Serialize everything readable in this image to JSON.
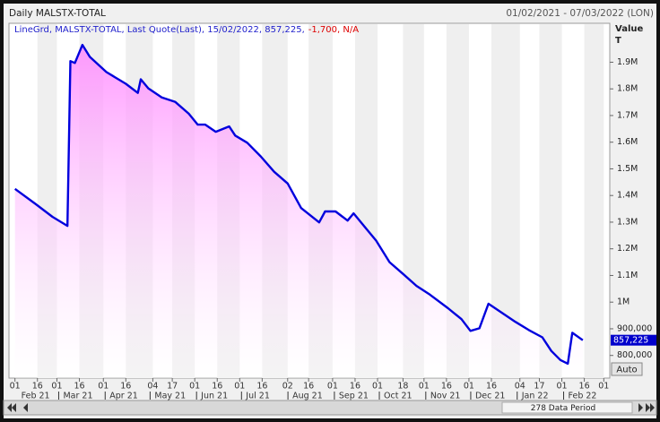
{
  "chart_data": {
    "type": "line",
    "title": "Daily MALSTX-TOTAL",
    "date_range": "01/02/2021 - 07/03/2022 (LON)",
    "legend": {
      "text": "LineGrd, MALSTX-TOTAL, Last Quote(Last), 15/02/2022, 857,225,",
      "change": "-1,700, N/A"
    },
    "y_axis_title": "Value",
    "y_axis_unit": "T",
    "last_label": "857,225",
    "auto_button": "Auto",
    "period_label": "278 Data Period",
    "x": [
      "2021-02-01",
      "2021-02-15",
      "2021-02-26",
      "2021-03-08",
      "2021-03-10",
      "2021-03-13",
      "2021-03-18",
      "2021-03-23",
      "2021-04-03",
      "2021-04-16",
      "2021-04-24",
      "2021-04-26",
      "2021-05-01",
      "2021-05-10",
      "2021-05-19",
      "2021-05-28",
      "2021-06-03",
      "2021-06-08",
      "2021-06-15",
      "2021-06-24",
      "2021-06-28",
      "2021-07-06",
      "2021-07-15",
      "2021-07-24",
      "2021-08-02",
      "2021-08-11",
      "2021-08-23",
      "2021-08-27",
      "2021-09-03",
      "2021-09-11",
      "2021-09-15",
      "2021-09-21",
      "2021-09-30",
      "2021-10-09",
      "2021-10-18",
      "2021-10-27",
      "2021-11-05",
      "2021-11-17",
      "2021-11-26",
      "2021-12-02",
      "2021-12-08",
      "2021-12-14",
      "2021-12-23",
      "2022-01-01",
      "2022-01-10",
      "2022-01-19",
      "2022-01-25",
      "2022-01-31",
      "2022-02-05",
      "2022-02-08",
      "2022-02-15"
    ],
    "series": [
      {
        "name": "MALSTX-TOTAL",
        "color": "#0000dd",
        "values": [
          1425000,
          1367000,
          1320000,
          1286000,
          1904000,
          1897000,
          1965000,
          1920000,
          1863000,
          1819000,
          1785000,
          1836000,
          1802000,
          1768000,
          1751000,
          1707000,
          1666000,
          1666000,
          1639000,
          1659000,
          1625000,
          1598000,
          1547000,
          1489000,
          1445000,
          1353000,
          1299000,
          1340000,
          1340000,
          1306000,
          1333000,
          1292000,
          1231000,
          1150000,
          1106000,
          1061000,
          1028000,
          977000,
          936000,
          892000,
          902000,
          994000,
          960000,
          926000,
          895000,
          868000,
          817000,
          783000,
          769000,
          885000,
          857225
        ]
      }
    ],
    "area_color": "#ff88ff",
    "xlim": [
      "2021-01-28",
      "2022-03-05"
    ],
    "xticks": [
      {
        "value": "2021-02-01",
        "label": "01"
      },
      {
        "value": "2021-02-16",
        "label": "16"
      },
      {
        "value": "2021-03-01",
        "label": "01"
      },
      {
        "value": "2021-03-16",
        "label": "16"
      },
      {
        "value": "2021-04-01",
        "label": "01"
      },
      {
        "value": "2021-04-16",
        "label": "16"
      },
      {
        "value": "2021-05-04",
        "label": "04"
      },
      {
        "value": "2021-05-17",
        "label": "17"
      },
      {
        "value": "2021-06-01",
        "label": "01"
      },
      {
        "value": "2021-06-16",
        "label": "16"
      },
      {
        "value": "2021-07-01",
        "label": "01"
      },
      {
        "value": "2021-07-16",
        "label": "16"
      },
      {
        "value": "2021-08-02",
        "label": "02"
      },
      {
        "value": "2021-08-16",
        "label": "16"
      },
      {
        "value": "2021-09-01",
        "label": "01"
      },
      {
        "value": "2021-09-16",
        "label": "16"
      },
      {
        "value": "2021-10-01",
        "label": "01"
      },
      {
        "value": "2021-10-18",
        "label": "18"
      },
      {
        "value": "2021-11-01",
        "label": "01"
      },
      {
        "value": "2021-11-16",
        "label": "16"
      },
      {
        "value": "2021-12-01",
        "label": "01"
      },
      {
        "value": "2021-12-16",
        "label": "16"
      },
      {
        "value": "2022-01-04",
        "label": "04"
      },
      {
        "value": "2022-01-17",
        "label": "17"
      },
      {
        "value": "2022-02-01",
        "label": "01"
      },
      {
        "value": "2022-02-16",
        "label": "16"
      },
      {
        "value": "2022-03-01",
        "label": "01"
      }
    ],
    "month_ticks": [
      {
        "value": "2021-02",
        "label": "Feb 21"
      },
      {
        "value": "2021-03",
        "label": "Mar 21"
      },
      {
        "value": "2021-04",
        "label": "Apr 21"
      },
      {
        "value": "2021-05",
        "label": "May 21"
      },
      {
        "value": "2021-06",
        "label": "Jun 21"
      },
      {
        "value": "2021-07",
        "label": "Jul 21"
      },
      {
        "value": "2021-08",
        "label": "Aug 21"
      },
      {
        "value": "2021-09",
        "label": "Sep 21"
      },
      {
        "value": "2021-10",
        "label": "Oct 21"
      },
      {
        "value": "2021-11",
        "label": "Nov 21"
      },
      {
        "value": "2021-12",
        "label": "Dec 21"
      },
      {
        "value": "2022-01",
        "label": "Jan 22"
      },
      {
        "value": "2022-02",
        "label": "Feb 22"
      }
    ],
    "ylim": [
      715000,
      2046000
    ],
    "yticks": [
      {
        "value": 800000,
        "label": "800,000"
      },
      {
        "value": 900000,
        "label": "900,000"
      },
      {
        "value": 1000000,
        "label": "1M"
      },
      {
        "value": 1100000,
        "label": "1.1M"
      },
      {
        "value": 1200000,
        "label": "1.2M"
      },
      {
        "value": 1300000,
        "label": "1.3M"
      },
      {
        "value": 1400000,
        "label": "1.4M"
      },
      {
        "value": 1500000,
        "label": "1.5M"
      },
      {
        "value": 1600000,
        "label": "1.6M"
      },
      {
        "value": 1700000,
        "label": "1.7M"
      },
      {
        "value": 1800000,
        "label": "1.8M"
      },
      {
        "value": 1900000,
        "label": "1.9M"
      }
    ],
    "grid": "alternating-columns"
  }
}
